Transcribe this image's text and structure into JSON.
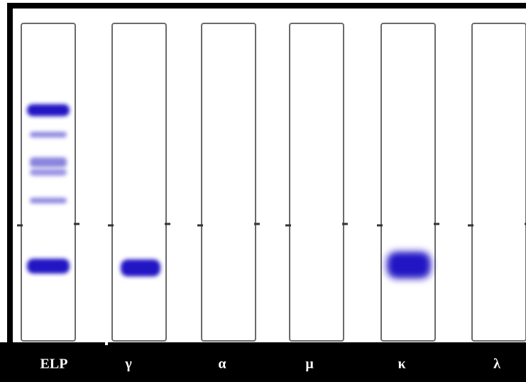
{
  "lanes": [
    {
      "label": "ELP"
    },
    {
      "label": "γ"
    },
    {
      "label": "α"
    },
    {
      "label": "μ"
    },
    {
      "label": "κ"
    },
    {
      "label": "λ"
    }
  ]
}
